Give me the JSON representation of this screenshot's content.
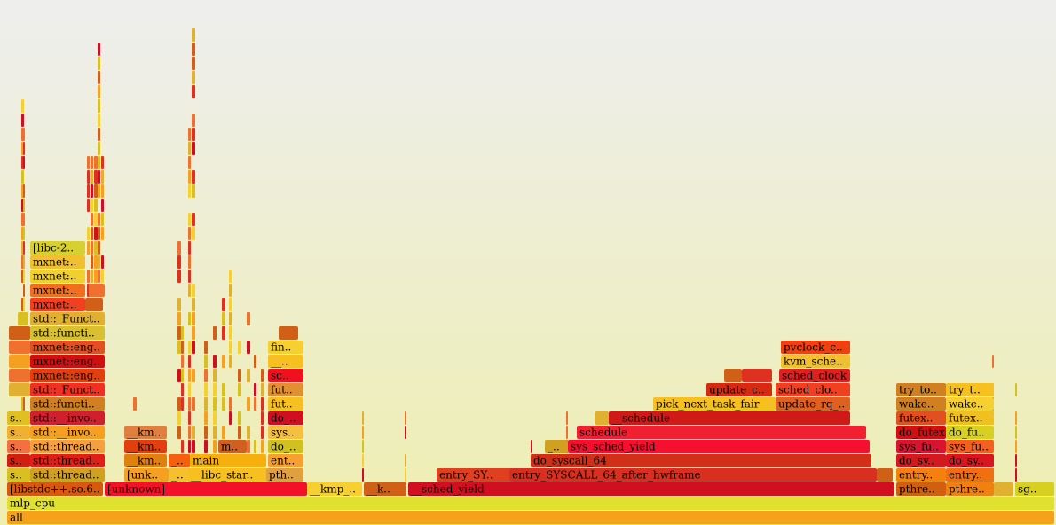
{
  "frames": [
    {
      "label": "all"
    },
    {
      "label": "mlp_cpu"
    },
    {
      "label": "[libstdc++.so.6.."
    },
    {
      "label": "[unknown]"
    },
    {
      "label": "__kmp_.."
    },
    {
      "label": "__k.."
    },
    {
      "label": "__sched_yield"
    },
    {
      "label": "pthre.."
    },
    {
      "label": "pthre.."
    },
    {
      "label": "sg.."
    },
    {
      "label": "s.."
    },
    {
      "label": "std::thread.."
    },
    {
      "label": "[unk.."
    },
    {
      "label": "_.."
    },
    {
      "label": "__libc_star.."
    },
    {
      "label": "pth.."
    },
    {
      "label": "entry_SY.."
    },
    {
      "label": "entry_SYSCALL_64_after_hwframe"
    },
    {
      "label": "entry.."
    },
    {
      "label": "entry.."
    },
    {
      "label": "s.."
    },
    {
      "label": "std::thread.."
    },
    {
      "label": "__km.."
    },
    {
      "label": "_.."
    },
    {
      "label": "main"
    },
    {
      "label": "ent.."
    },
    {
      "label": "do_syscall_64"
    },
    {
      "label": "do_sy.."
    },
    {
      "label": "do_sy.."
    },
    {
      "label": "s.."
    },
    {
      "label": "std::thread.."
    },
    {
      "label": "__km.."
    },
    {
      "label": "m.."
    },
    {
      "label": "do_.."
    },
    {
      "label": "_.."
    },
    {
      "label": "sys_sched_yield"
    },
    {
      "label": "sys_fu.."
    },
    {
      "label": "sys_fu.."
    },
    {
      "label": "s.."
    },
    {
      "label": "std::__invo.."
    },
    {
      "label": "__km.."
    },
    {
      "label": "sys.."
    },
    {
      "label": "schedule"
    },
    {
      "label": "do_futex"
    },
    {
      "label": "do_fu.."
    },
    {
      "label": "s.."
    },
    {
      "label": "std::__invo.."
    },
    {
      "label": "do_.."
    },
    {
      "label": "__schedule"
    },
    {
      "label": "futex.."
    },
    {
      "label": "futex.."
    },
    {
      "label": "std::functi.."
    },
    {
      "label": "fut.."
    },
    {
      "label": "pick_next_task_fair"
    },
    {
      "label": "update_rq_.."
    },
    {
      "label": "wake.."
    },
    {
      "label": "wake.."
    },
    {
      "label": "std::_Funct.."
    },
    {
      "label": "fut.."
    },
    {
      "label": "update_c.."
    },
    {
      "label": "sched_clo.."
    },
    {
      "label": "try_to.."
    },
    {
      "label": "try_t.."
    },
    {
      "label": "mxnet::eng.."
    },
    {
      "label": "sc.."
    },
    {
      "label": "sched_clock"
    },
    {
      "label": "mxnet::eng.."
    },
    {
      "label": "__.."
    },
    {
      "label": "kvm_sche.."
    },
    {
      "label": "mxnet::eng.."
    },
    {
      "label": "fin.."
    },
    {
      "label": "pvclock_c.."
    },
    {
      "label": "std::functi.."
    },
    {
      "label": "std::_Funct.."
    },
    {
      "label": "mxnet:.."
    },
    {
      "label": "mxnet:.."
    },
    {
      "label": "mxnet:.."
    },
    {
      "label": "mxnet:.."
    },
    {
      "label": "[libc-2.."
    }
  ]
}
